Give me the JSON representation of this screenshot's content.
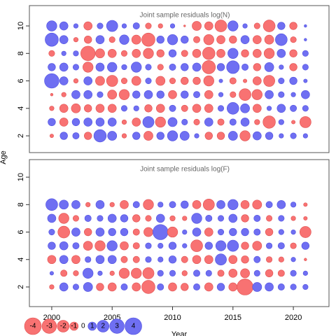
{
  "chart_data": [
    {
      "type": "bubble",
      "title": "Joint sample residuals log(N)",
      "x": [
        2000,
        2001,
        2002,
        2003,
        2004,
        2005,
        2006,
        2007,
        2008,
        2009,
        2010,
        2011,
        2012,
        2013,
        2014,
        2015,
        2016,
        2017,
        2018,
        2019,
        2020,
        2021
      ],
      "ages": [
        10,
        9,
        8,
        7,
        6,
        5,
        4,
        3,
        2
      ],
      "values": [
        [
          1.5,
          1,
          0.3,
          -1,
          0.5,
          1.8,
          0.3,
          0.6,
          -0.5,
          -0.3,
          0.3,
          -0.05,
          -1.2,
          -1,
          -2,
          1.5,
          0.3,
          -0.5,
          -2,
          0.8,
          -0.8,
          0.1
        ],
        [
          2.5,
          1,
          -0.3,
          -0.8,
          1,
          -0.5,
          1.3,
          -1.2,
          -2.5,
          0.8,
          1.5,
          0.8,
          -0.6,
          -1.5,
          -1,
          -0.8,
          1,
          -1,
          -1.2,
          2,
          -0.5,
          0.1
        ],
        [
          -0.5,
          0.3,
          0.4,
          -3,
          -1.2,
          -1,
          -0.5,
          -1,
          -1.5,
          -0.8,
          0.8,
          -0.6,
          -1,
          -2.2,
          -1,
          1.5,
          -0.8,
          -1,
          -1.5,
          1,
          -0.8,
          0.5
        ],
        [
          0.8,
          1,
          0.5,
          -1.5,
          1,
          1.3,
          0.4,
          1.5,
          0.5,
          -0.5,
          0.6,
          0.8,
          1,
          -2.5,
          0.8,
          2.3,
          0.6,
          -0.8,
          1.2,
          0.3,
          -0.8,
          0.5
        ],
        [
          3,
          1,
          -0.3,
          1,
          -1.2,
          -1.8,
          -0.5,
          -1.2,
          0.5,
          -1.2,
          -0.5,
          -0.8,
          -0.8,
          -1.5,
          0.2,
          -0.6,
          -0.2,
          -1,
          -1.8,
          0.5,
          0.8,
          0.2
        ],
        [
          -0.1,
          -0.3,
          1,
          1,
          0.5,
          -1.2,
          -1.5,
          0.8,
          1,
          0.8,
          -1,
          0.8,
          0.6,
          -1,
          0.3,
          -0.5,
          -2,
          -1.5,
          1,
          0.5,
          0.3,
          1
        ],
        [
          -0.3,
          -1,
          -1.2,
          -0.8,
          -1,
          -1,
          0.5,
          0.4,
          -0.8,
          -1,
          0.6,
          -0.6,
          -1,
          -1,
          0.5,
          2,
          1.2,
          -1,
          0.3,
          1,
          0.6,
          0.5
        ],
        [
          0.8,
          -1,
          0.8,
          1,
          1,
          1,
          -0.3,
          -1,
          1.8,
          -1.5,
          1.2,
          0.5,
          -0.5,
          1,
          -0.6,
          0.6,
          1,
          -0.4,
          -2.2,
          0.4,
          -0.2,
          -1.8
        ],
        [
          -0.2,
          0.8,
          0.6,
          -0.8,
          2.2,
          1.2,
          -0.3,
          0.8,
          -1.2,
          0.8,
          1.5,
          1.2,
          0.3,
          -0.8,
          -0.8,
          1.2,
          -1.5,
          1,
          0.8,
          0.3,
          0.5,
          0.3
        ]
      ],
      "xlim": [
        1998.15,
        2022.95
      ],
      "ylim": [
        0.78,
        11.48
      ],
      "yticks": [
        2,
        4,
        6,
        8,
        10
      ],
      "positive_color": "#6f6ff2",
      "negative_color": "#f87272"
    },
    {
      "type": "bubble",
      "title": "Joint sample residuals log(F)",
      "x": [
        2000,
        2001,
        2002,
        2003,
        2004,
        2005,
        2006,
        2007,
        2008,
        2009,
        2010,
        2011,
        2012,
        2013,
        2014,
        2015,
        2016,
        2017,
        2018,
        2019,
        2020,
        2021
      ],
      "ages": [
        8,
        7,
        6,
        5,
        4,
        3,
        2
      ],
      "values": [
        [
          2,
          1.2,
          1,
          -0.3,
          1,
          -0.3,
          -1,
          0.6,
          -1.5,
          0.4,
          0.6,
          0.8,
          -1,
          -1.8,
          1,
          1.5,
          -1,
          -1.2,
          0.6,
          1,
          0.4,
          -0.2
        ],
        [
          1,
          -1.5,
          -0.5,
          0.6,
          0.5,
          1,
          0.8,
          -0.8,
          -0.5,
          1,
          -0.4,
          -0.3,
          1.5,
          0.6,
          0.5,
          1,
          -0.8,
          0.6,
          -0.5,
          0.5,
          -0.3,
          -0.2
        ],
        [
          0.5,
          -2,
          1,
          -0.8,
          1,
          0.8,
          0.8,
          -0.6,
          -1.2,
          3.3,
          -1.5,
          0.3,
          1,
          -1,
          0.5,
          0.8,
          0.8,
          0.6,
          -0.8,
          0.4,
          0.3,
          -1.8
        ],
        [
          0.8,
          1,
          0.6,
          -1.2,
          -1.5,
          1.5,
          -1,
          -0.6,
          0.5,
          0.4,
          0.8,
          0.3,
          -2,
          0.8,
          1.5,
          1.8,
          -0.8,
          -1.2,
          0.5,
          0.6,
          -0.5,
          0.8
        ],
        [
          -1,
          1,
          -1,
          0.5,
          1,
          1,
          -0.6,
          -0.6,
          0.5,
          0.4,
          0.8,
          -0.6,
          -1,
          -1,
          1.8,
          -1,
          -0.8,
          0.6,
          -0.5,
          -0.4,
          0.3,
          -0.1
        ],
        [
          0.2,
          -0.6,
          -0.4,
          1.5,
          0.3,
          -0.3,
          -1.5,
          -1.5,
          -1.8,
          0.5,
          0.5,
          -0.4,
          0.6,
          0.5,
          -0.6,
          -1,
          -1.2,
          0.5,
          -0.8,
          -0.6,
          0.5,
          0.3
        ],
        [
          -0.3,
          1,
          0.5,
          1.2,
          -0.8,
          -1,
          0.6,
          -1,
          -2.5,
          0.6,
          -1,
          -0.8,
          0.6,
          -1,
          0.8,
          -1,
          -3.7,
          1.2,
          1,
          0.6,
          0.5,
          0.4
        ]
      ],
      "xlim": [
        1998.15,
        2022.95
      ],
      "ylim": [
        0.57,
        11.28
      ],
      "yticks": [
        2,
        4,
        6,
        8,
        10
      ],
      "xticks": [
        2000,
        2005,
        2010,
        2015,
        2020
      ],
      "positive_color": "#6f6ff2",
      "negative_color": "#f87272"
    }
  ],
  "ylabel": "Age",
  "xlabel": "Year",
  "legend_values": [
    -4,
    -3,
    -2,
    -1,
    0,
    1,
    2,
    3,
    4
  ]
}
